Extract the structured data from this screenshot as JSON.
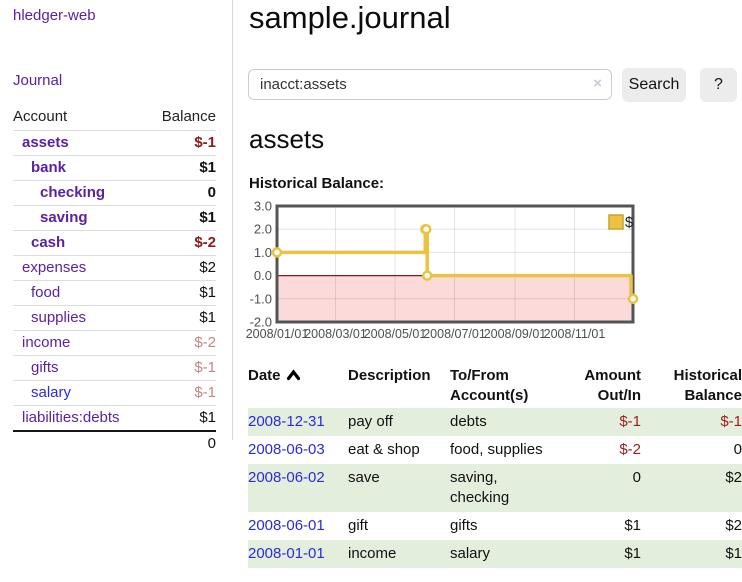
{
  "brand": "hledger-web",
  "nav": {
    "journal_label": "Journal"
  },
  "sidebar_table": {
    "headers": {
      "account": "Account",
      "balance": "Balance"
    },
    "rows": [
      {
        "name": "assets",
        "level": 1,
        "bold": true,
        "balance": "$-1",
        "balance_style": "neg"
      },
      {
        "name": "bank",
        "level": 2,
        "bold": true,
        "balance": "$1",
        "balance_style": "pos"
      },
      {
        "name": "checking",
        "level": 3,
        "bold": true,
        "balance": "0",
        "balance_style": "pos"
      },
      {
        "name": "saving",
        "level": 3,
        "bold": true,
        "balance": "$1",
        "balance_style": "pos"
      },
      {
        "name": "cash",
        "level": 2,
        "bold": true,
        "balance": "$-2",
        "balance_style": "neg"
      },
      {
        "name": "expenses",
        "level": 1,
        "bold": false,
        "balance": "$2",
        "balance_style": "pos"
      },
      {
        "name": "food",
        "level": 2,
        "bold": false,
        "balance": "$1",
        "balance_style": "pos"
      },
      {
        "name": "supplies",
        "level": 2,
        "bold": false,
        "balance": "$1",
        "balance_style": "pos"
      },
      {
        "name": "income",
        "level": 1,
        "bold": false,
        "balance": "$-2",
        "balance_style": "dim-neg"
      },
      {
        "name": "gifts",
        "level": 2,
        "bold": false,
        "balance": "$-1",
        "balance_style": "dim-neg"
      },
      {
        "name": "salary",
        "level": 2,
        "bold": false,
        "link_style": "unvisited",
        "balance": "$-1",
        "balance_style": "dim-neg"
      },
      {
        "name": "liabilities:debts",
        "level": 1,
        "bold": false,
        "balance": "$1",
        "balance_style": "pos"
      }
    ],
    "total": "0"
  },
  "header": {
    "title": "sample.journal"
  },
  "search": {
    "value": "inacct:assets",
    "clear_icon": "×",
    "button_label": "Search",
    "help_label": "?"
  },
  "account_page": {
    "heading": "assets",
    "chart_label": "Historical Balance:"
  },
  "chart_data": {
    "type": "line",
    "title": "Historical Balance",
    "steps": true,
    "legend": [
      {
        "label": "$",
        "color": "#edc240"
      }
    ],
    "legend_position": "top-right",
    "grid": true,
    "xlim_days": [
      0,
      365
    ],
    "ylim": [
      -2.0,
      3.0
    ],
    "y_ticks": [
      {
        "v": 3,
        "label": "3.0"
      },
      {
        "v": 2,
        "label": "2.0"
      },
      {
        "v": 1,
        "label": "1.0"
      },
      {
        "v": 0,
        "label": "0.0"
      },
      {
        "v": -1,
        "label": "-1.0"
      },
      {
        "v": -2,
        "label": "-2.0"
      }
    ],
    "x_ticks": [
      {
        "day": 0,
        "label": "2008/01/01"
      },
      {
        "day": 60,
        "label": "2008/03/01"
      },
      {
        "day": 121,
        "label": "2008/05/01"
      },
      {
        "day": 182,
        "label": "2008/07/01"
      },
      {
        "day": 244,
        "label": "2008/09/01"
      },
      {
        "day": 305,
        "label": "2008/11/01"
      }
    ],
    "series": [
      {
        "name": "$",
        "color": "#edc240",
        "points": [
          {
            "date": "2008-01-01",
            "day": 0,
            "value": 1
          },
          {
            "date": "2008-06-01",
            "day": 152,
            "value": 2
          },
          {
            "date": "2008-06-02",
            "day": 153,
            "value": 2
          },
          {
            "date": "2008-06-03",
            "day": 154,
            "value": 0
          },
          {
            "date": "2008-12-31",
            "day": 365,
            "value": -1
          }
        ]
      }
    ],
    "negative_region_fill": "#fcdada",
    "zero_line_color": "#8b1717"
  },
  "register_table": {
    "headers": {
      "date": "Date",
      "description": "Description",
      "tofrom_1": "To/From",
      "tofrom_2": "Account(s)",
      "amount_1": "Amount",
      "amount_2": "Out/In",
      "hist_1": "Historical",
      "hist_2": "Balance"
    },
    "rows": [
      {
        "date": "2008-12-31",
        "description": "pay off",
        "accounts": "debts",
        "amount": "$-1",
        "amount_neg": true,
        "balance": "$-1",
        "balance_neg": true,
        "shaded": true
      },
      {
        "date": "2008-06-03",
        "description": "eat & shop",
        "accounts": "food, supplies",
        "amount": "$-2",
        "amount_neg": true,
        "balance": "0",
        "balance_neg": false,
        "shaded": false
      },
      {
        "date": "2008-06-02",
        "description": "save",
        "accounts": "saving, checking",
        "amount": "0",
        "amount_neg": false,
        "balance": "$2",
        "balance_neg": false,
        "shaded": true
      },
      {
        "date": "2008-06-01",
        "description": "gift",
        "accounts": "gifts",
        "amount": "$1",
        "amount_neg": false,
        "balance": "$2",
        "balance_neg": false,
        "shaded": false
      },
      {
        "date": "2008-01-01",
        "description": "income",
        "accounts": "salary",
        "amount": "$1",
        "amount_neg": false,
        "balance": "$1",
        "balance_neg": false,
        "shaded": true
      }
    ]
  }
}
